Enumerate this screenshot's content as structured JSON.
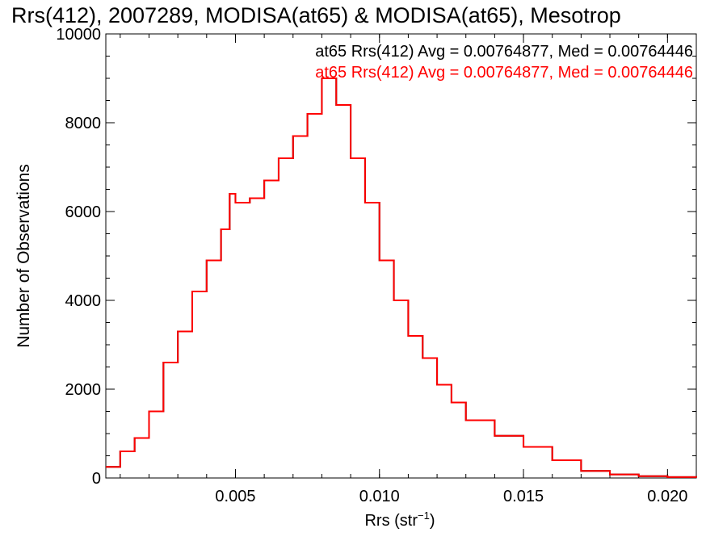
{
  "chart_data": {
    "type": "histogram-step",
    "title": "Rrs(412), 2007289, MODISA(at65) & MODISA(at65), Mesotrop",
    "xlabel": {
      "main": "Rrs (str",
      "sup": "−1",
      "tail": ")"
    },
    "ylabel": "Number of Observations",
    "xlim": [
      0.0005,
      0.021
    ],
    "ylim": [
      0,
      10000
    ],
    "x_ticks": [
      0.005,
      0.01,
      0.015,
      0.02
    ],
    "x_tick_labels": [
      "0.005",
      "0.010",
      "0.015",
      "0.020"
    ],
    "y_ticks": [
      0,
      2000,
      4000,
      6000,
      8000,
      10000
    ],
    "y_tick_labels": [
      "0",
      "2000",
      "4000",
      "6000",
      "8000",
      "10000"
    ],
    "legend": [
      {
        "text": "at65 Rrs(412) Avg = 0.00764877, Med = 0.00764446",
        "color": "#000000"
      },
      {
        "text": "at65 Rrs(412) Avg = 0.00764877, Med = 0.00764446",
        "color": "#ff0000"
      }
    ],
    "series": [
      {
        "color": "#000000",
        "x": [
          0.0005,
          0.001,
          0.0015,
          0.002,
          0.0025,
          0.003,
          0.0035,
          0.004,
          0.0045,
          0.0048,
          0.005,
          0.0055,
          0.006,
          0.0065,
          0.007,
          0.0075,
          0.008,
          0.0085,
          0.009,
          0.0095,
          0.01,
          0.0105,
          0.011,
          0.0115,
          0.012,
          0.0125,
          0.013,
          0.014,
          0.015,
          0.016,
          0.017,
          0.018,
          0.019,
          0.02,
          0.021
        ],
        "y": [
          250,
          600,
          900,
          1500,
          2600,
          3300,
          4200,
          4900,
          5600,
          6400,
          6200,
          6300,
          6700,
          7200,
          7700,
          8200,
          9000,
          8400,
          7200,
          6200,
          4900,
          4000,
          3200,
          2700,
          2100,
          1700,
          1300,
          950,
          700,
          400,
          160,
          80,
          40,
          20,
          10
        ]
      },
      {
        "color": "#ff0000",
        "x": [
          0.0005,
          0.001,
          0.0015,
          0.002,
          0.0025,
          0.003,
          0.0035,
          0.004,
          0.0045,
          0.0048,
          0.005,
          0.0055,
          0.006,
          0.0065,
          0.007,
          0.0075,
          0.008,
          0.0085,
          0.009,
          0.0095,
          0.01,
          0.0105,
          0.011,
          0.0115,
          0.012,
          0.0125,
          0.013,
          0.014,
          0.015,
          0.016,
          0.017,
          0.018,
          0.019,
          0.02,
          0.021
        ],
        "y": [
          250,
          600,
          900,
          1500,
          2600,
          3300,
          4200,
          4900,
          5600,
          6400,
          6200,
          6300,
          6700,
          7200,
          7700,
          8200,
          9000,
          8400,
          7200,
          6200,
          4900,
          4000,
          3200,
          2700,
          2100,
          1700,
          1300,
          950,
          700,
          400,
          160,
          80,
          40,
          20,
          10
        ]
      }
    ]
  }
}
